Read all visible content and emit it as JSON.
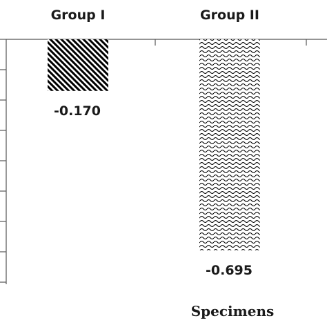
{
  "chart_data": {
    "type": "bar",
    "categories": [
      "Group I",
      "Group II"
    ],
    "values": [
      -0.17,
      -0.695
    ],
    "value_labels": [
      "-0.170",
      "-0.695"
    ],
    "xlabel": "Specimens",
    "ylim": [
      -0.8,
      0
    ],
    "category_axis_position": "top",
    "grid": false,
    "legend": "none",
    "patterns": [
      "diagonal-hatch",
      "wavy"
    ],
    "colors": {
      "bar": "#000000",
      "axis": "#555555",
      "text": "#1a1a1a"
    }
  }
}
